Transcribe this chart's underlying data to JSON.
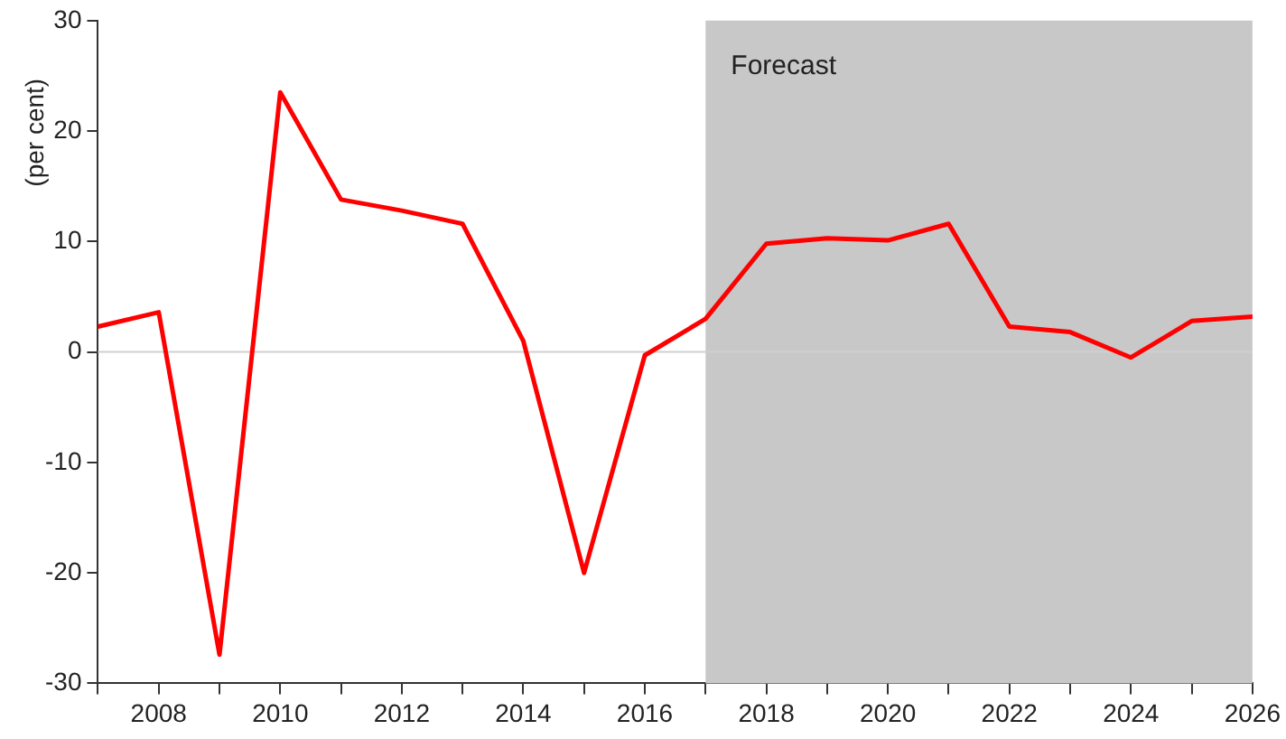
{
  "chart_data": {
    "type": "line",
    "ylabel": "(per cent)",
    "x": [
      2007,
      2008,
      2009,
      2010,
      2011,
      2012,
      2013,
      2014,
      2015,
      2016,
      2017,
      2018,
      2019,
      2020,
      2021,
      2022,
      2023,
      2024,
      2025,
      2026
    ],
    "series": [
      {
        "color": "#ff0000",
        "values": [
          2.3,
          3.6,
          -27.4,
          23.5,
          13.8,
          12.8,
          11.6,
          1.0,
          -20,
          -0.3,
          3.0,
          9.8,
          10.3,
          10.1,
          11.6,
          2.3,
          1.8,
          -0.5,
          2.8,
          3.2
        ]
      }
    ],
    "xlim": [
      2007,
      2026
    ],
    "xticks": [
      {
        "value": 2007,
        "label": null
      },
      2008,
      {
        "value": 2009,
        "label": null
      },
      2010,
      {
        "value": 2011,
        "label": null
      },
      2012,
      {
        "value": 2013,
        "label": null
      },
      2014,
      {
        "value": 2015,
        "label": null
      },
      2016,
      {
        "value": 2017,
        "label": null
      },
      2018,
      {
        "value": 2019,
        "label": null
      },
      2020,
      {
        "value": 2021,
        "label": null
      },
      2022,
      {
        "value": 2023,
        "label": null
      },
      2024,
      {
        "value": 2025,
        "label": null
      },
      2026
    ],
    "ylim": [
      -30,
      30
    ],
    "yticks": [
      -30,
      -20,
      -10,
      0,
      10,
      20,
      30
    ],
    "ref_lines": [
      {
        "axis": "y",
        "value": 0,
        "color": "#d0d0d0"
      }
    ],
    "bands": [
      {
        "axis": "x",
        "from": 2017,
        "to": 2026,
        "label": "Forecast",
        "color": "#c8c8c8"
      }
    ],
    "grid": false,
    "legend": false,
    "marker": "none",
    "line_style": "solid"
  }
}
